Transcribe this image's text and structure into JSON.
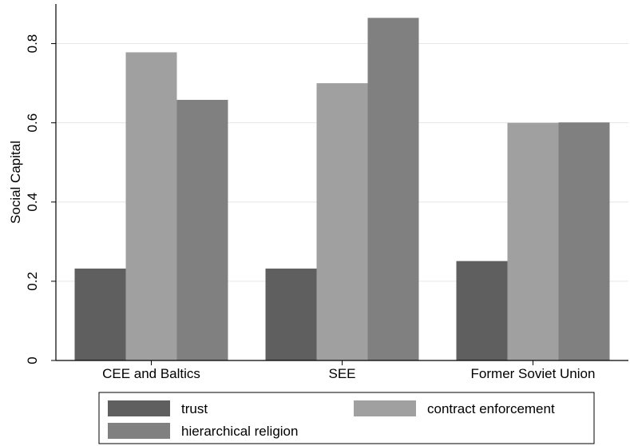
{
  "chart_data": {
    "type": "bar",
    "categories": [
      "CEE and Baltics",
      "SEE",
      "Former Soviet Union"
    ],
    "series": [
      {
        "name": "trust",
        "values": [
          0.232,
          0.232,
          0.251
        ],
        "color": "#5f5f5f"
      },
      {
        "name": "contract enforcement",
        "values": [
          0.778,
          0.7,
          0.6
        ],
        "color": "#a0a0a0"
      },
      {
        "name": "hierarchical religion",
        "values": [
          0.658,
          0.865,
          0.601
        ],
        "color": "#808080"
      }
    ],
    "ylabel": "Social Capital",
    "xlabel": "",
    "ylim": [
      0,
      0.9
    ],
    "yticks": [
      0,
      0.2,
      0.4,
      0.6,
      0.8
    ],
    "ytick_labels": [
      "0",
      "0.2",
      "0.4",
      "0.6",
      "0.8"
    ],
    "grid": true,
    "legend_position": "bottom"
  }
}
